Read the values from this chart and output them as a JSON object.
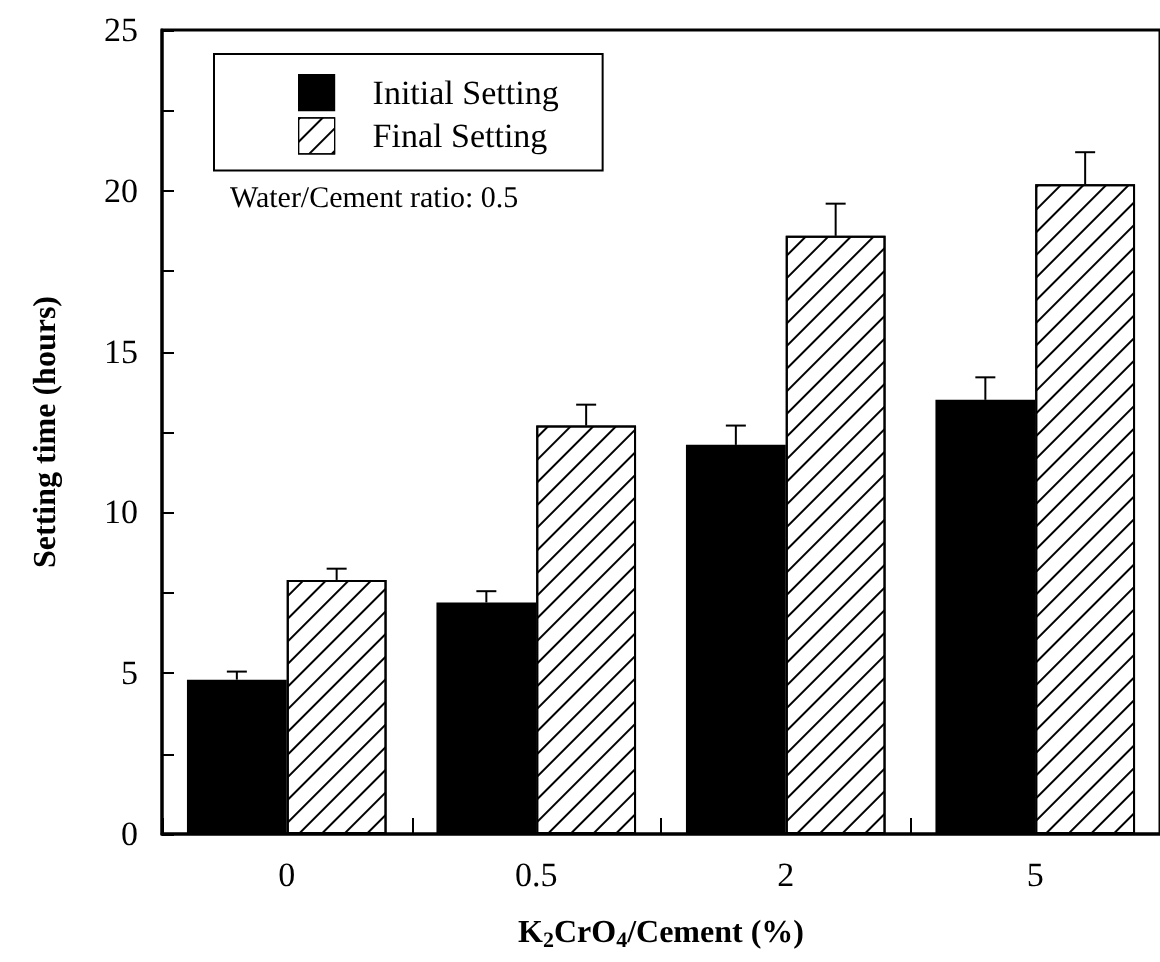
{
  "chart_data": {
    "type": "bar",
    "xlabel": "K$_{2}$CrO$_{4}$/Cement (%)",
    "ylabel": "Setting time (hours)",
    "categories": [
      "0",
      "0.5",
      "2",
      "5"
    ],
    "series": [
      {
        "name": "Initial Setting",
        "color": "#000000",
        "values": [
          4.8,
          7.2,
          12.1,
          13.5
        ],
        "errors": [
          [
            4.8,
            5.05
          ],
          [
            7.2,
            7.55
          ],
          [
            12.1,
            12.7
          ],
          [
            13.5,
            14.2
          ]
        ]
      },
      {
        "name": "Final Setting",
        "color": "#ffffff",
        "values": [
          7.9,
          12.7,
          18.6,
          20.2
        ],
        "errors": [
          [
            7.9,
            8.25
          ],
          [
            12.7,
            13.35
          ],
          [
            18.6,
            19.6
          ],
          [
            20.2,
            21.2
          ]
        ]
      }
    ],
    "ylim": [
      0,
      25
    ],
    "yticks": [
      0,
      {
        "value": 2.5,
        "label": null
      },
      5,
      {
        "value": 7.5,
        "label": null
      },
      10,
      {
        "value": 12.5,
        "label": null
      },
      15,
      {
        "value": 17.5,
        "label": null
      },
      20,
      {
        "value": 22.5,
        "label": null
      },
      25
    ],
    "annotations": [
      "Water/Cement ratio: 0.5"
    ],
    "legend": "top left",
    "grid": false
  }
}
